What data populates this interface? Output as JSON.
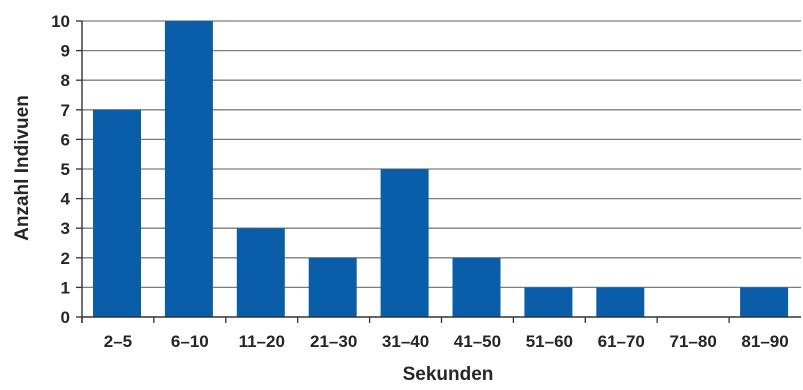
{
  "chart_data": {
    "type": "bar",
    "categories": [
      "2–5",
      "6–10",
      "11–20",
      "21–30",
      "31–40",
      "41–50",
      "51–60",
      "61–70",
      "71–80",
      "81–90"
    ],
    "values": [
      7,
      10,
      3,
      2,
      5,
      2,
      1,
      1,
      0,
      1
    ],
    "xlabel": "Sekunden",
    "ylabel": "Anzahl Indivuen",
    "ylim": [
      0,
      10
    ],
    "yticks": [
      0,
      1,
      2,
      3,
      4,
      5,
      6,
      7,
      8,
      9,
      10
    ],
    "grid": true,
    "legend": "none",
    "colors": {
      "bar": "#0a5da8",
      "grid": "#7d7d7d",
      "axis": "#333333"
    }
  }
}
